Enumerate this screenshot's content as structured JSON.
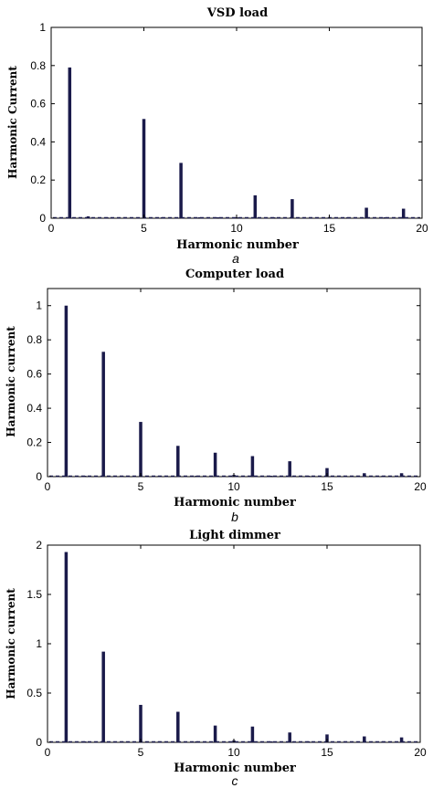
{
  "chart_data": [
    {
      "type": "bar",
      "title": "VSD load",
      "xlabel": "Harmonic number",
      "ylabel": "Harmonic Current",
      "caption": "a",
      "xlim": [
        0,
        20
      ],
      "ylim": [
        0,
        1
      ],
      "xticks": [
        "0",
        "5",
        "10",
        "15",
        "20"
      ],
      "yticks": [
        "0",
        "0.2",
        "0.4",
        "0.6",
        "0.8",
        "1"
      ],
      "x": [
        1,
        2,
        3,
        4,
        5,
        6,
        7,
        8,
        9,
        10,
        11,
        12,
        13,
        14,
        15,
        16,
        17,
        18,
        19
      ],
      "values": [
        0.79,
        0.01,
        0.005,
        0.005,
        0.52,
        0.005,
        0.29,
        0.005,
        0.005,
        0.005,
        0.12,
        0.005,
        0.1,
        0.005,
        0.005,
        0.005,
        0.055,
        0.005,
        0.05
      ]
    },
    {
      "type": "bar",
      "title": "Computer load",
      "xlabel": "Harmonic number",
      "ylabel": "Harmonic current",
      "caption": "b",
      "xlim": [
        0,
        20
      ],
      "ylim": [
        0,
        1.1
      ],
      "xticks": [
        "0",
        "5",
        "10",
        "15",
        "20"
      ],
      "yticks": [
        "0",
        "0.2",
        "0.4",
        "0.6",
        "0.8",
        "1"
      ],
      "x": [
        1,
        2,
        3,
        4,
        5,
        6,
        7,
        8,
        9,
        10,
        11,
        12,
        13,
        14,
        15,
        16,
        17,
        18,
        19
      ],
      "values": [
        1.0,
        0.005,
        0.73,
        0.005,
        0.32,
        0.005,
        0.18,
        0.005,
        0.14,
        0.01,
        0.12,
        0.005,
        0.09,
        0.005,
        0.05,
        0.005,
        0.02,
        0.005,
        0.02
      ]
    },
    {
      "type": "bar",
      "title": "Light dimmer",
      "xlabel": "Harmonic number",
      "ylabel": "Harmonic current",
      "caption": "c",
      "xlim": [
        0,
        20
      ],
      "ylim": [
        0,
        2
      ],
      "xticks": [
        "0",
        "5",
        "10",
        "15",
        "20"
      ],
      "yticks": [
        "0",
        "0.5",
        "1",
        "1.5",
        "2"
      ],
      "x": [
        1,
        2,
        3,
        4,
        5,
        6,
        7,
        8,
        9,
        10,
        11,
        12,
        13,
        14,
        15,
        16,
        17,
        18,
        19
      ],
      "values": [
        1.93,
        0.01,
        0.92,
        0.01,
        0.38,
        0.01,
        0.31,
        0.01,
        0.17,
        0.02,
        0.16,
        0.01,
        0.1,
        0.01,
        0.08,
        0.01,
        0.06,
        0.01,
        0.05
      ]
    }
  ],
  "colors": {
    "bar": "#1a1a4a"
  }
}
